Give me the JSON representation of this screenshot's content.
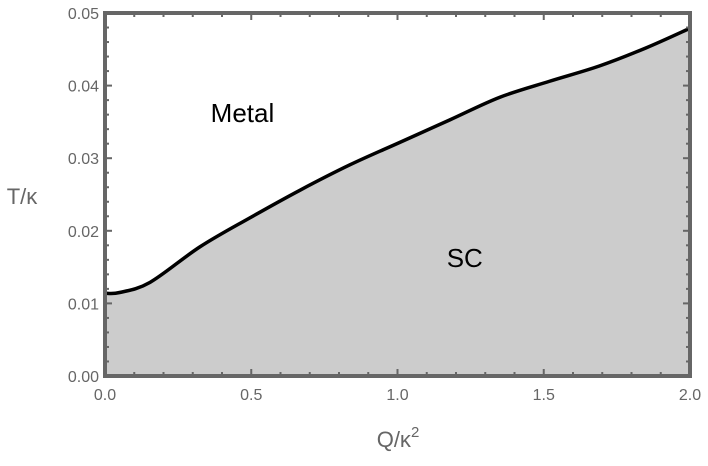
{
  "chart_data": {
    "type": "area",
    "title": "",
    "xlabel": "Q/κ",
    "xlabel_sup": "2",
    "ylabel": "T/κ",
    "xlim": [
      0,
      2.0
    ],
    "ylim": [
      0,
      0.05
    ],
    "xticks": [
      "0.0",
      "0.5",
      "1.0",
      "1.5",
      "2.0"
    ],
    "yticks": [
      "0.00",
      "0.01",
      "0.02",
      "0.03",
      "0.04",
      "0.05"
    ],
    "grid": false,
    "series": [
      {
        "x": [
          0,
          0.05,
          0.154,
          0.325,
          0.496,
          0.667,
          0.838,
          1.009,
          1.18,
          1.35,
          1.52,
          1.69,
          1.85,
          2.0
        ],
        "y": [
          0.0114,
          0.0115,
          0.0129,
          0.0178,
          0.0218,
          0.0256,
          0.0291,
          0.0322,
          0.0353,
          0.0384,
          0.0406,
          0.0427,
          0.0452,
          0.0479
        ]
      }
    ],
    "region_labels": [
      {
        "text": "Metal",
        "x": 0.47,
        "y": 0.035
      },
      {
        "text": "SC",
        "x": 1.23,
        "y": 0.015
      }
    ],
    "colors": {
      "fill": "#cccccc",
      "line": "#000000",
      "frame": "#666666",
      "tick_text": "#666666"
    }
  }
}
